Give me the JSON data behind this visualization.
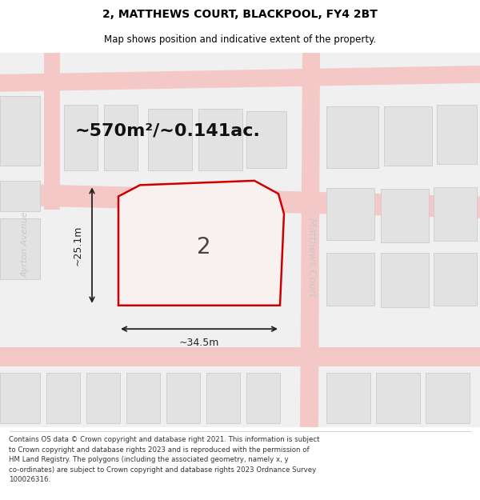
{
  "title": "2, MATTHEWS COURT, BLACKPOOL, FY4 2BT",
  "subtitle": "Map shows position and indicative extent of the property.",
  "footer": "Contains OS data © Crown copyright and database right 2021. This information is subject\nto Crown copyright and database rights 2023 and is reproduced with the permission of\nHM Land Registry. The polygons (including the associated geometry, namely x, y\nco-ordinates) are subject to Crown copyright and database rights 2023 Ordnance Survey\n100026316.",
  "area_label": "~570m²/~0.141ac.",
  "street_ayrton": "Ayrton Avenue",
  "street_matthews": "Matthews Court",
  "street_ayrton_left": "Ayrton Avenue",
  "number_label": "2",
  "dim_width": "~34.5m",
  "dim_height": "~25.1m",
  "map_bg": "#efefef",
  "road_color": "#f5c8c8",
  "building_fill": "#e2e2e2",
  "building_edge": "#cccccc",
  "plot_fill": "#f9f0f0",
  "plot_edge": "#cc0000",
  "plot_edge_width": 1.8,
  "title_fontsize": 10,
  "subtitle_fontsize": 8.5,
  "area_fontsize": 16,
  "number_fontsize": 20,
  "street_fontsize": 9,
  "dim_fontsize": 9,
  "footer_fontsize": 6.2,
  "title_color": "#000000",
  "area_color": "#111111",
  "number_color": "#444444",
  "street_color": "#c8c8c8",
  "dim_color": "#222222",
  "footer_color": "#333333"
}
